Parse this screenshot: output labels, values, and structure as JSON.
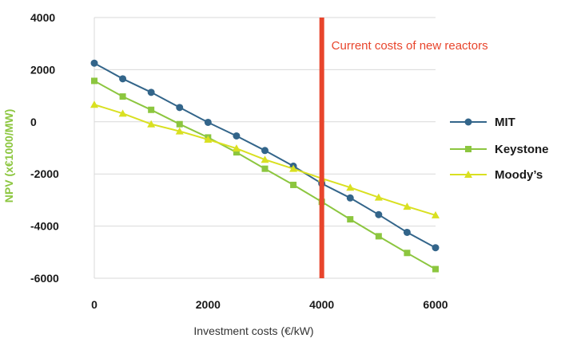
{
  "chart_data": {
    "type": "line",
    "title": "",
    "xlabel": "Investment costs (€/kW)",
    "ylabel": "NPV (x€1000/MW)",
    "xlim": [
      0,
      6000
    ],
    "ylim": [
      -6000,
      4000
    ],
    "x_ticks": [
      0,
      2000,
      4000,
      6000
    ],
    "y_ticks": [
      4000,
      2000,
      0,
      -2000,
      -4000,
      -6000
    ],
    "x_tick_labels": [
      "0",
      "2000",
      "4000",
      "6000"
    ],
    "y_tick_labels": [
      "4000",
      "2000",
      "0",
      "-2000",
      "-4000",
      "-6000"
    ],
    "grid": "horizontal",
    "legend_position": "right",
    "x": [
      0,
      500,
      1000,
      1500,
      2000,
      2500,
      3000,
      3500,
      4000,
      4500,
      5000,
      5500,
      6000
    ],
    "series": [
      {
        "name": "MIT",
        "color": "#33658a",
        "marker": "circle",
        "values": [
          2250,
          1650,
          1130,
          550,
          -20,
          -540,
          -1100,
          -1700,
          -2370,
          -2920,
          -3560,
          -4240,
          -4830
        ]
      },
      {
        "name": "Keystone",
        "color": "#8cc63f",
        "marker": "square",
        "values": [
          1570,
          970,
          460,
          -90,
          -600,
          -1170,
          -1800,
          -2420,
          -3070,
          -3740,
          -4390,
          -5030,
          -5650
        ]
      },
      {
        "name": "Moody’s",
        "color": "#d9e021",
        "marker": "triangle",
        "values": [
          660,
          320,
          -90,
          -360,
          -680,
          -1020,
          -1450,
          -1800,
          -2170,
          -2520,
          -2900,
          -3250,
          -3580
        ]
      }
    ],
    "annotation": {
      "x": 4000,
      "label": "Current costs of new reactors",
      "color": "#e8452c"
    }
  }
}
